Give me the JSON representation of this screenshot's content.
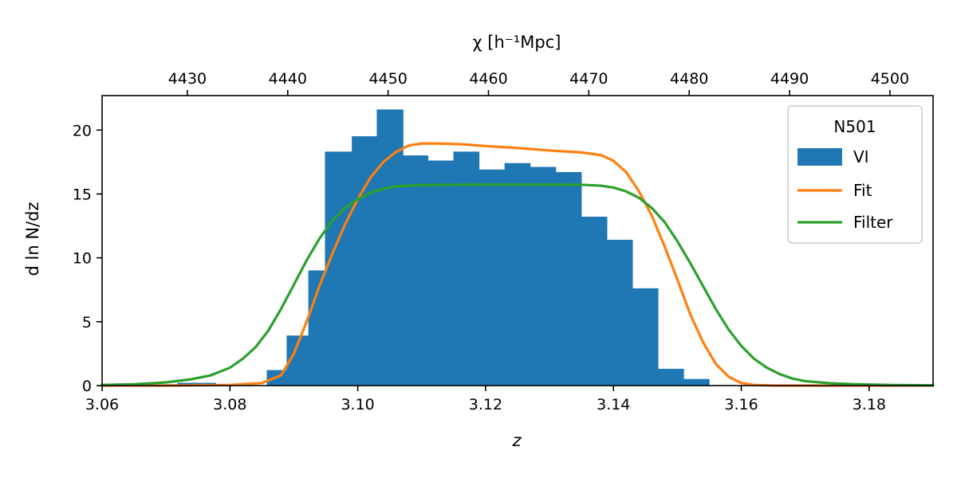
{
  "chart_data": {
    "type": "bar",
    "xlabel": "z",
    "ylabel": "d ln N/dz",
    "top_xlabel": "χ   [h⁻¹Mpc]",
    "xlim": [
      3.06,
      3.19
    ],
    "ylim": [
      0,
      22.7
    ],
    "top_xlim": [
      4421.5,
      4504.3
    ],
    "x_ticks": [
      "3.06",
      "3.08",
      "3.10",
      "3.12",
      "3.14",
      "3.16",
      "3.18"
    ],
    "x_tick_values": [
      3.06,
      3.08,
      3.1,
      3.12,
      3.14,
      3.16,
      3.18
    ],
    "y_ticks": [
      "0",
      "5",
      "10",
      "15",
      "20"
    ],
    "y_tick_values": [
      0,
      5,
      10,
      15,
      20
    ],
    "top_x_ticks": [
      "4430",
      "4440",
      "4450",
      "4460",
      "4470",
      "4480",
      "4490",
      "4500"
    ],
    "top_x_tick_values": [
      4430,
      4440,
      4450,
      4460,
      4470,
      4480,
      4490,
      4500
    ],
    "legend": {
      "title": "N501",
      "position": "upper right",
      "entries": [
        "VI",
        "Fit",
        "Filter"
      ]
    },
    "histogram": {
      "name": "VI",
      "color": "#1f77b4",
      "bin_edges": [
        3.0718,
        3.0778,
        3.0818,
        3.0858,
        3.0889,
        3.0923,
        3.0949,
        3.0991,
        3.103,
        3.1071,
        3.111,
        3.115,
        3.119,
        3.123,
        3.127,
        3.131,
        3.135,
        3.139,
        3.143,
        3.147,
        3.151,
        3.155,
        3.16,
        3.164
      ],
      "values": [
        0.2,
        0.1,
        0.0,
        1.2,
        3.9,
        9.0,
        18.3,
        19.5,
        21.6,
        18.0,
        17.6,
        18.3,
        16.9,
        17.4,
        17.1,
        16.7,
        13.2,
        11.4,
        7.6,
        1.3,
        0.5,
        0.0,
        0.0
      ]
    },
    "series": [
      {
        "name": "Fit",
        "color": "#ff7f0e",
        "x": [
          3.06,
          3.07,
          3.08,
          3.085,
          3.088,
          3.09,
          3.092,
          3.094,
          3.096,
          3.098,
          3.1,
          3.102,
          3.104,
          3.106,
          3.108,
          3.11,
          3.112,
          3.116,
          3.12,
          3.125,
          3.13,
          3.135,
          3.138,
          3.14,
          3.142,
          3.144,
          3.146,
          3.148,
          3.15,
          3.152,
          3.154,
          3.156,
          3.158,
          3.16,
          3.162,
          3.165,
          3.17,
          3.19
        ],
        "y": [
          0.0,
          0.0,
          0.05,
          0.2,
          0.8,
          2.5,
          5.0,
          7.8,
          10.3,
          12.6,
          14.6,
          16.3,
          17.5,
          18.3,
          18.8,
          18.95,
          18.95,
          18.9,
          18.75,
          18.6,
          18.4,
          18.25,
          18.05,
          17.6,
          16.7,
          15.2,
          13.3,
          10.9,
          8.3,
          5.6,
          3.4,
          1.7,
          0.7,
          0.2,
          0.05,
          0.0,
          0.0,
          0.0
        ]
      },
      {
        "name": "Filter",
        "color": "#2ca02c",
        "x": [
          3.06,
          3.065,
          3.07,
          3.074,
          3.077,
          3.08,
          3.082,
          3.084,
          3.086,
          3.088,
          3.09,
          3.092,
          3.094,
          3.096,
          3.098,
          3.1,
          3.102,
          3.104,
          3.106,
          3.108,
          3.11,
          3.115,
          3.12,
          3.125,
          3.13,
          3.135,
          3.138,
          3.14,
          3.142,
          3.144,
          3.146,
          3.148,
          3.15,
          3.152,
          3.154,
          3.156,
          3.158,
          3.16,
          3.162,
          3.164,
          3.166,
          3.168,
          3.17,
          3.174,
          3.178,
          3.184,
          3.19
        ],
        "y": [
          0.05,
          0.1,
          0.25,
          0.5,
          0.8,
          1.4,
          2.1,
          3.0,
          4.3,
          6.0,
          7.9,
          9.8,
          11.5,
          12.9,
          13.9,
          14.6,
          15.1,
          15.4,
          15.6,
          15.65,
          15.7,
          15.72,
          15.73,
          15.73,
          15.73,
          15.72,
          15.65,
          15.5,
          15.2,
          14.7,
          13.9,
          12.8,
          11.3,
          9.6,
          7.8,
          6.0,
          4.4,
          3.1,
          2.1,
          1.4,
          0.9,
          0.55,
          0.35,
          0.18,
          0.1,
          0.04,
          0.02
        ]
      }
    ]
  }
}
